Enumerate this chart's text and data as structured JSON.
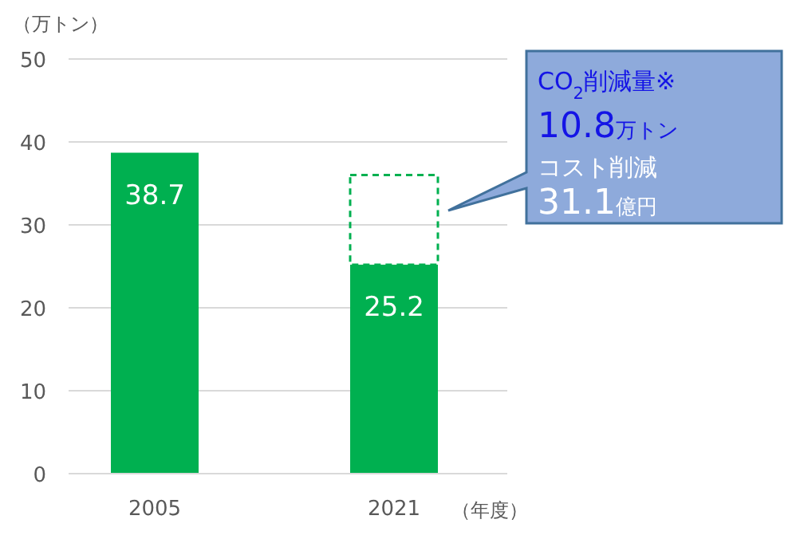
{
  "chart_data": {
    "type": "bar",
    "stacked": true,
    "categories": [
      "2005",
      "2021"
    ],
    "series": [
      {
        "color": "#00b050",
        "values": [
          38.7,
          25.2
        ],
        "value_labels": [
          "38.7",
          "25.2"
        ]
      },
      {
        "color": "#00b050",
        "values": [
          null,
          10.8
        ],
        "line_style": "dashed"
      }
    ],
    "ylabel": "（万トン）",
    "xlabel": "（年度）",
    "ylim": [
      0,
      50
    ],
    "yticks": [
      0,
      10,
      20,
      30,
      40,
      50
    ],
    "grid": "y",
    "annotations": [
      "CO$_{2}$削減量※",
      "10.8万トン",
      "コスト削減",
      "31.1億円"
    ]
  }
}
